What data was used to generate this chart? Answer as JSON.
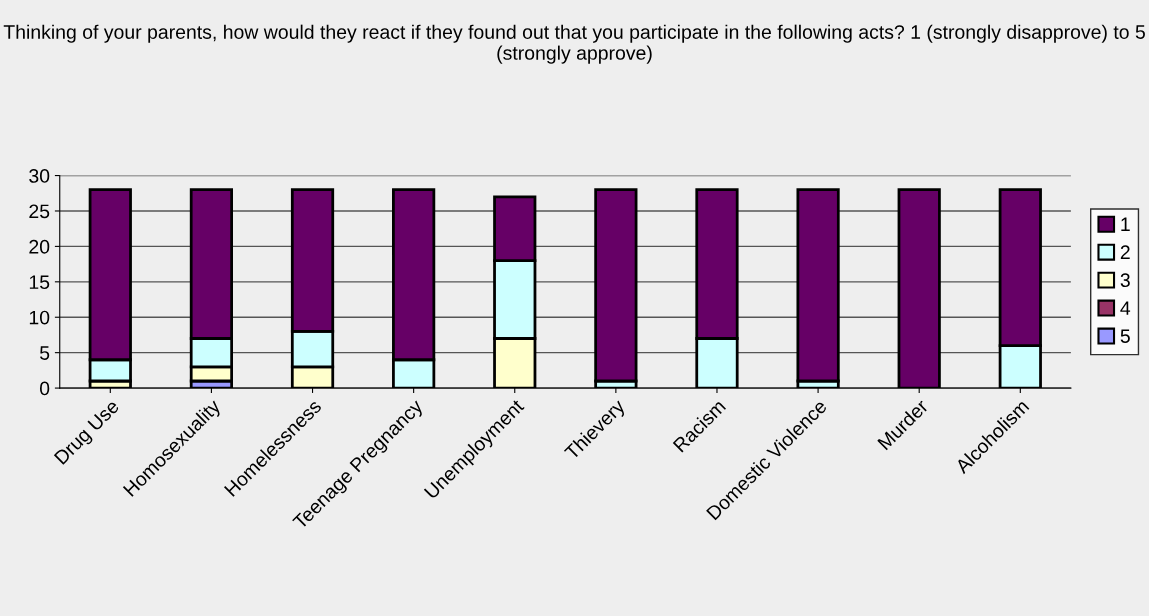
{
  "chart_data": {
    "type": "bar",
    "stacked": true,
    "title": "Thinking of your parents, how would they react if they found out that you participate in the following acts? 1 (strongly disapprove) to 5 (strongly approve)",
    "categories": [
      "Drug Use",
      "Homosexuality",
      "Homelessness",
      "Teenage Pregnancy",
      "Unemployment",
      "Thievery",
      "Racism",
      "Domestic Violence",
      "Murder",
      "Alcoholism"
    ],
    "series": [
      {
        "name": "5",
        "color": "#9999ff",
        "values": [
          0,
          1,
          0,
          0,
          0,
          0,
          0,
          0,
          0,
          0
        ]
      },
      {
        "name": "4",
        "color": "#993366",
        "values": [
          0,
          0,
          0,
          0,
          0,
          0,
          0,
          0,
          0,
          0
        ]
      },
      {
        "name": "3",
        "color": "#ffffcc",
        "values": [
          1,
          2,
          3,
          0,
          7,
          0,
          0,
          0,
          0,
          0
        ]
      },
      {
        "name": "2",
        "color": "#ccffff",
        "values": [
          3,
          4,
          5,
          4,
          11,
          1,
          7,
          1,
          0,
          6
        ]
      },
      {
        "name": "1",
        "color": "#660066",
        "values": [
          24,
          21,
          20,
          24,
          9,
          27,
          21,
          27,
          28,
          22
        ]
      }
    ],
    "ylim": [
      0,
      30
    ],
    "yticks": [
      0,
      5,
      10,
      15,
      20,
      25,
      30
    ],
    "grid": "y",
    "legend": "right"
  }
}
